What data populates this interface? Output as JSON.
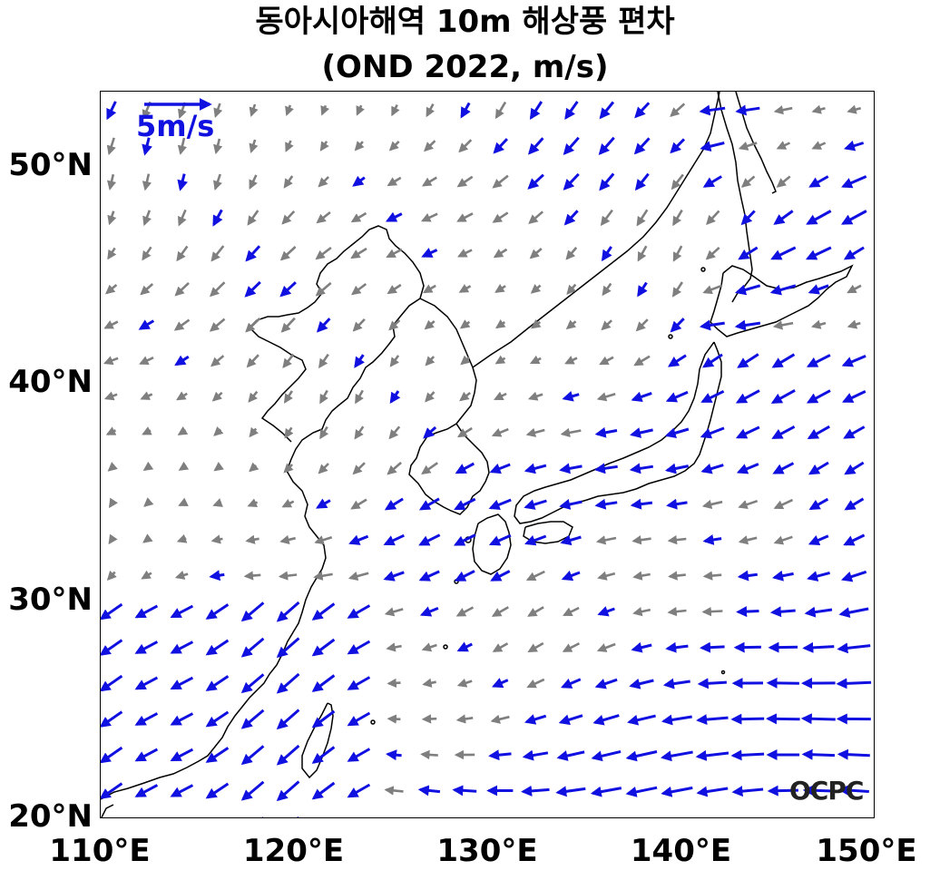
{
  "title": {
    "line1": "동아시아해역 10m 해상풍 편차",
    "line2": "(OND 2022, m/s)"
  },
  "axes": {
    "lon_range": [
      110,
      150
    ],
    "lat_range": [
      20,
      53.5
    ],
    "x_ticks": [
      {
        "value": 110,
        "label": "110°E"
      },
      {
        "value": 120,
        "label": "120°E"
      },
      {
        "value": 130,
        "label": "130°E"
      },
      {
        "value": 140,
        "label": "140°E"
      },
      {
        "value": 150,
        "label": "150°E"
      }
    ],
    "y_ticks": [
      {
        "value": 20,
        "label": "20°N"
      },
      {
        "value": 30,
        "label": "30°N"
      },
      {
        "value": 40,
        "label": "40°N"
      },
      {
        "value": 50,
        "label": "50°N"
      }
    ]
  },
  "reference_vector": {
    "label": "5m/s",
    "speed": 5,
    "color": "#1010e0"
  },
  "significant_color": "#1010e0",
  "insignificant_color": "#7f7f7f",
  "logo": {
    "text": "OCPC"
  }
}
